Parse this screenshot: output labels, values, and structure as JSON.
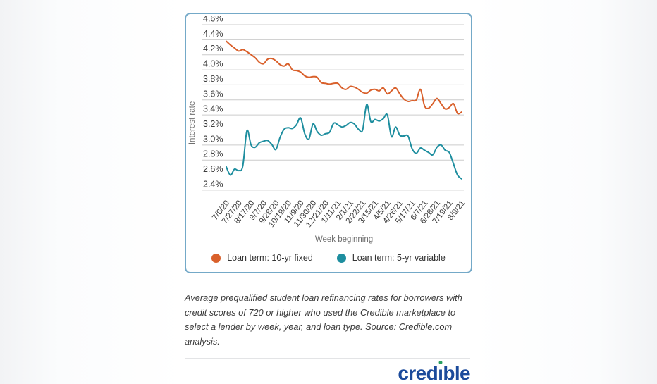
{
  "chart_data": {
    "type": "line",
    "title": "",
    "xlabel": "Week beginning",
    "ylabel": "Interest rate",
    "ylim": [
      2.4,
      4.6
    ],
    "grid": "horizontal",
    "legend_position": "bottom",
    "y_tick_labels": [
      "4.6%",
      "4.4%",
      "4.2%",
      "4.0%",
      "3.8%",
      "3.6%",
      "3.4%",
      "3.2%",
      "3.0%",
      "2.8%",
      "2.6%",
      "2.4%"
    ],
    "x_tick_labels": [
      "7/6/20",
      "7/27/20",
      "8/17/20",
      "9/7/20",
      "9/28/20",
      "10/19/20",
      "11/9/20",
      "11/30/20",
      "12/21/20",
      "1/11/21",
      "2/1/21",
      "2/22/21",
      "3/15/21",
      "4/5/21",
      "4/26/21",
      "5/17/21",
      "6/7/21",
      "6/28/21",
      "7/19/21",
      "8/9/21"
    ],
    "x_tick_every": 3,
    "series": [
      {
        "name": "Loan term: 10-yr fixed",
        "color": "#d9602b",
        "values": [
          4.38,
          4.33,
          4.29,
          4.25,
          4.27,
          4.24,
          4.2,
          4.16,
          4.1,
          4.08,
          4.14,
          4.15,
          4.12,
          4.07,
          4.05,
          4.08,
          4.0,
          3.99,
          3.97,
          3.92,
          3.9,
          3.91,
          3.9,
          3.83,
          3.82,
          3.81,
          3.82,
          3.82,
          3.76,
          3.74,
          3.78,
          3.77,
          3.74,
          3.7,
          3.69,
          3.73,
          3.74,
          3.72,
          3.76,
          3.68,
          3.72,
          3.76,
          3.68,
          3.61,
          3.58,
          3.59,
          3.6,
          3.74,
          3.52,
          3.49,
          3.55,
          3.62,
          3.55,
          3.48,
          3.5,
          3.55,
          3.42,
          3.44
        ]
      },
      {
        "name": "Loan term: 5-yr variable",
        "color": "#1e8e9f",
        "values": [
          2.71,
          2.6,
          2.68,
          2.66,
          2.72,
          3.19,
          3.0,
          2.97,
          3.03,
          3.05,
          3.06,
          3.01,
          2.94,
          3.1,
          3.21,
          3.23,
          3.22,
          3.27,
          3.36,
          3.15,
          3.08,
          3.28,
          3.18,
          3.13,
          3.15,
          3.17,
          3.29,
          3.27,
          3.24,
          3.26,
          3.3,
          3.28,
          3.21,
          3.2,
          3.54,
          3.31,
          3.34,
          3.32,
          3.35,
          3.4,
          3.11,
          3.24,
          3.13,
          3.12,
          3.12,
          2.95,
          2.89,
          2.96,
          2.93,
          2.9,
          2.87,
          2.97,
          3.0,
          2.93,
          2.9,
          2.75,
          2.6,
          2.55
        ]
      }
    ],
    "gridline_color": "#cccccc",
    "tick_text_color": "#3b3b3b",
    "axis_title_color": "#6f6f6f"
  },
  "card": {
    "border_color": "#74a9c8"
  },
  "caption": {
    "text": "Average prequalified student loan refinancing rates for borrowers with credit scores of 720 or higher who used the Credible marketplace to select a lender by week, year, and loan type. Source: Credible.com analysis."
  },
  "footer": {
    "logo_text": "credible",
    "logo_color": "#1b4a9b",
    "logo_dot_color": "#2aa062"
  }
}
